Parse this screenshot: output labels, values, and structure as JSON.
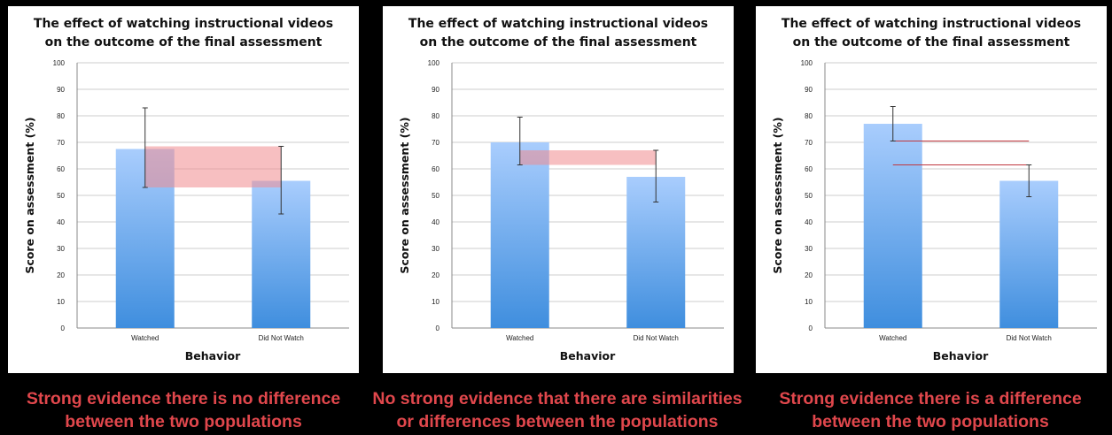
{
  "chart_data": [
    {
      "type": "bar",
      "title_lines": [
        "The effect of watching instructional videos",
        "on the outcome of the final assessment"
      ],
      "ylabel": "Score on assessment (%)",
      "xlabel": "Behavior",
      "ylim": [
        0,
        100
      ],
      "yticks": [
        "0",
        "10",
        "20",
        "30",
        "40",
        "50",
        "60",
        "70",
        "80",
        "90",
        "100"
      ],
      "categories": [
        "Watched",
        "Did Not Watch"
      ],
      "values": [
        67.5,
        55.5
      ],
      "error_low": [
        53,
        43
      ],
      "error_high": [
        83,
        68.5
      ],
      "overlap_band": [
        53,
        68.5
      ],
      "grid": true,
      "caption_lines": [
        "Strong evidence there is no difference",
        "between the two populations"
      ]
    },
    {
      "type": "bar",
      "title_lines": [
        "The effect of watching instructional videos",
        "on the outcome of the final assessment"
      ],
      "ylabel": "Score on assessment (%)",
      "xlabel": "Behavior",
      "ylim": [
        0,
        100
      ],
      "yticks": [
        "0",
        "10",
        "20",
        "30",
        "40",
        "50",
        "60",
        "70",
        "80",
        "90",
        "100"
      ],
      "categories": [
        "Watched",
        "Did Not Watch"
      ],
      "values": [
        70,
        57
      ],
      "error_low": [
        61.5,
        47.5
      ],
      "error_high": [
        79.5,
        67
      ],
      "overlap_band": [
        61.5,
        67
      ],
      "grid": true,
      "caption_lines": [
        "No strong evidence that there are similarities",
        "or differences between the populations"
      ]
    },
    {
      "type": "bar",
      "title_lines": [
        "The effect of watching instructional videos",
        "on the outcome of the final assessment"
      ],
      "ylabel": "Score on assessment (%)",
      "xlabel": "Behavior",
      "ylim": [
        0,
        100
      ],
      "yticks": [
        "0",
        "10",
        "20",
        "30",
        "40",
        "50",
        "60",
        "70",
        "80",
        "90",
        "100"
      ],
      "categories": [
        "Watched",
        "Did Not Watch"
      ],
      "values": [
        77,
        55.5
      ],
      "error_low": [
        70.5,
        49.5
      ],
      "error_high": [
        83.5,
        61.5
      ],
      "gap_lines": [
        70.5,
        61.5
      ],
      "grid": true,
      "caption_lines": [
        "Strong evidence there is a difference",
        "between the two populations"
      ]
    }
  ],
  "colors": {
    "bar_top": "#a9cdfd",
    "bar_bottom": "#3f8ede",
    "band": "#f08a8e",
    "gap_line": "#c0373f",
    "caption": "#e0474c",
    "background": "#000000"
  }
}
